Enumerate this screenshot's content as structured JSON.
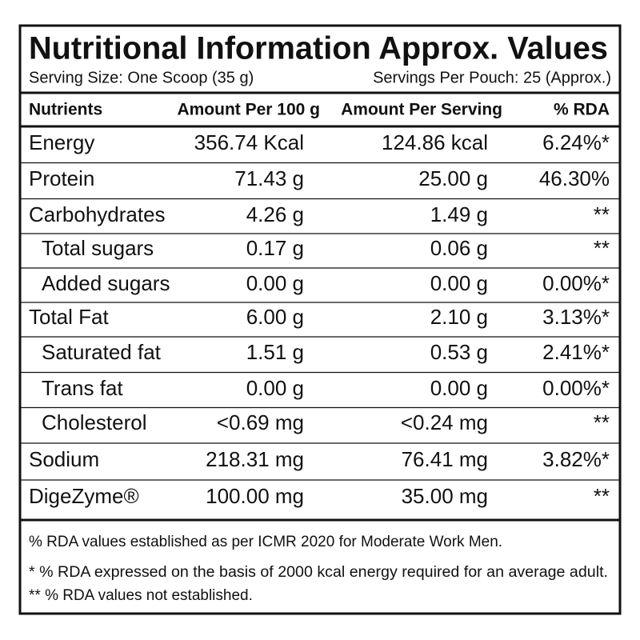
{
  "header": {
    "title": "Nutritional Information Approx. Values",
    "serving_size": "Serving Size: One Scoop (35 g)",
    "servings_per_pouch": "Servings Per Pouch: 25 (Approx.)"
  },
  "table": {
    "columns": [
      "Nutrients",
      "Amount Per 100 g",
      "Amount Per Serving",
      "% RDA"
    ],
    "rows": [
      [
        "Energy",
        "356.74 Kcal",
        "124.86 kcal",
        "6.24%*"
      ],
      [
        "Protein",
        "71.43 g",
        "25.00 g",
        "46.30%"
      ],
      [
        "Carbohydrates",
        "4.26 g",
        "1.49 g",
        "**"
      ],
      [
        "Total sugars",
        "0.17 g",
        "0.06 g",
        "**"
      ],
      [
        "Added sugars",
        "0.00 g",
        "0.00 g",
        "0.00%*"
      ],
      [
        "Total Fat",
        "6.00 g",
        "2.10 g",
        "3.13%*"
      ],
      [
        "Saturated fat",
        "1.51 g",
        "0.53 g",
        "2.41%*"
      ],
      [
        "Trans fat",
        "0.00 g",
        "0.00 g",
        "0.00%*"
      ],
      [
        "Cholesterol",
        "<0.69 mg",
        "<0.24 mg",
        "**"
      ],
      [
        "Sodium",
        "218.31 mg",
        "76.41 mg",
        "3.82%*"
      ],
      [
        "DigeZyme®",
        "100.00 mg",
        "35.00 mg",
        "**"
      ]
    ]
  },
  "footnotes": [
    "% RDA values established as per ICMR 2020 for Moderate Work Men.",
    "* % RDA expressed on the basis of 2000 kcal energy required for an average adult.",
    "** % RDA values not established."
  ]
}
